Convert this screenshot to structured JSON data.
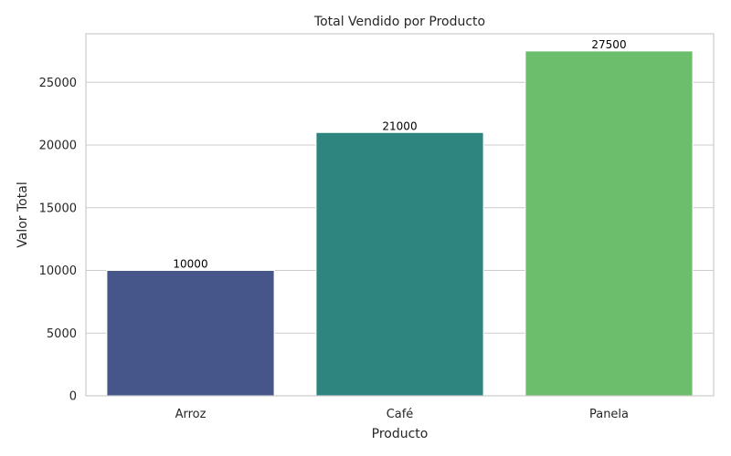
{
  "chart_data": {
    "type": "bar",
    "title": "Total Vendido por Producto",
    "xlabel": "Producto",
    "ylabel": "Valor Total",
    "categories": [
      "Arroz",
      "Café",
      "Panela"
    ],
    "values": [
      10000,
      21000,
      27500
    ],
    "data_labels": [
      "10000",
      "21000",
      "27500"
    ],
    "colors": [
      "#46568a",
      "#2e857f",
      "#6cbe6d"
    ],
    "ylim": [
      0,
      28875
    ],
    "yticks": [
      0,
      5000,
      10000,
      15000,
      20000,
      25000
    ],
    "ytick_labels": [
      "0",
      "5000",
      "10000",
      "15000",
      "20000",
      "25000"
    ],
    "grid": true,
    "legend": "none"
  }
}
